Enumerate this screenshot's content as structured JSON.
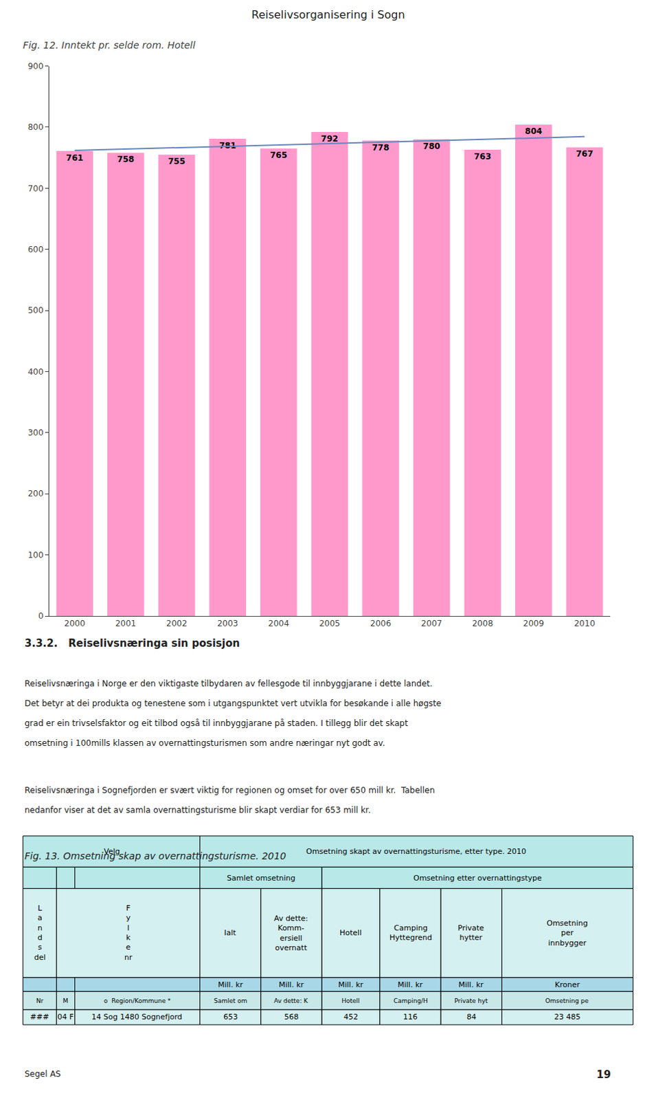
{
  "chart_data": {
    "type": "bar",
    "title": "Fig. 12. Inntekt pr. selde rom. Hotell",
    "categories": [
      "2000",
      "2001",
      "2002",
      "2003",
      "2004",
      "2005",
      "2006",
      "2007",
      "2008",
      "2009",
      "2010"
    ],
    "series": [
      {
        "type": "bar",
        "color": "#FF99CC",
        "values": [
          761,
          758,
          755,
          781,
          765,
          792,
          778,
          780,
          763,
          804,
          767
        ]
      },
      {
        "type": "line",
        "color": "#6688BB",
        "values": [
          761.7727,
          764.0364,
          766.3,
          768.5636,
          770.8273,
          773.0909,
          775.3545,
          777.6182,
          779.8818,
          782.1455,
          784.4091
        ]
      }
    ],
    "data_labels": true,
    "ylim": [
      0,
      900
    ],
    "yticks": [
      0,
      100,
      200,
      300,
      400,
      500,
      600,
      700,
      800,
      900
    ],
    "grid": false
  },
  "annotations": [
    "Reiselivsorganisering i Sogn",
    "3.3.2.   Reiselivsnæringa sin posisjon",
    "Reiselivsnæringa i Norge er den viktigaste tilbydaren av fellesgode til innbyggjarane i dette landet.",
    "Det betyr at dei produkta og tenestene som i utgangspunktet vert utvikla for besøkande i alle høgste",
    "grad er ein trivselsfaktor og eit tilbod også til innbyggjarane på staden. I tillegg blir det skapt",
    "omsetning i 100mills klassen av overnattingsturismen som andre næringar nyt godt av.",
    "Reiselivsnæringa i Sognefjorden er svært viktig for regionen og omset for over 650 mill kr.  Tabellen",
    "nedanfor viser at det av samla overnattingsturisme blir skapt verdiar for 653 mill kr.",
    "Fig. 13. Omsetning skap av overnattingsturisme. 2010",
    "Segel AS",
    "19"
  ],
  "table": {
    "colors": [
      "#B8E8E8",
      "#B8E8E8",
      "#D5F0F0",
      "#A8D8E8",
      "#C8E8E8",
      "#D5F0F0"
    ],
    "rows": [
      [
        "Velg",
        null,
        null,
        "Omsetning skapt av overnattingsturisme, etter type. 2010",
        null,
        null,
        null,
        null,
        null
      ],
      [
        null,
        null,
        null,
        "Samlet omsetning",
        null,
        "Omsetning etter overnattingstype",
        null,
        null,
        null
      ],
      [
        "L\na\nn\nd\ns\ndel",
        "F\ny\nl\nk\ne\nnr",
        null,
        "Ialt",
        "Av dette:\nKomm-\nersiell\novernatt",
        "Hotell",
        "Camping\nHyttegrend",
        "Private\nhytter",
        "Omsetning\nper\ninnbygger"
      ],
      [
        null,
        null,
        null,
        "Mill. kr",
        "Mill. kr",
        "Mill. kr",
        "Mill. kr",
        "Mill. kr",
        "Kroner"
      ],
      [
        "Nr",
        "M",
        "o  Region/Kommune *",
        "Samlet om",
        "Av dette: K",
        "Hotell",
        "Camping/H",
        "Private hyt",
        "Omsetning pe"
      ],
      [
        "###",
        "04 F",
        "14 Sog 1480 Sognefjord",
        "653",
        "568",
        "452",
        "116",
        "84",
        "23 485"
      ]
    ]
  }
}
